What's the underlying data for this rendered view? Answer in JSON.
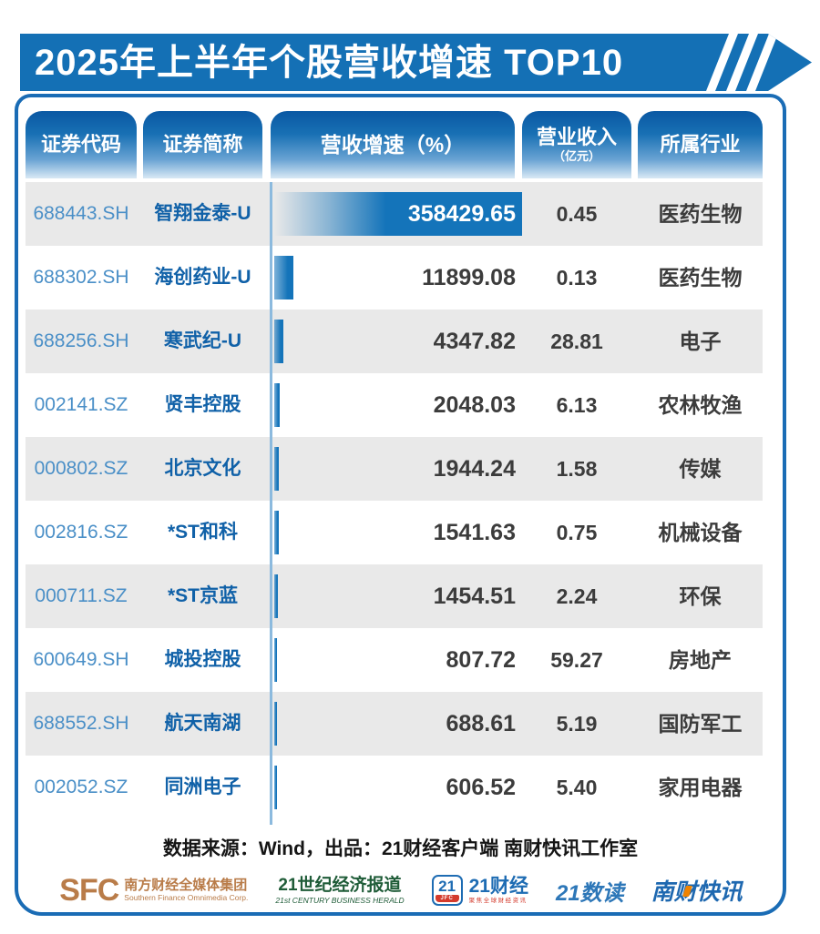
{
  "title": "2025年上半年个股营收增速 TOP10",
  "table": {
    "headers": [
      {
        "label": "证券代码"
      },
      {
        "label": "证券简称"
      },
      {
        "label": "营收增速（%）"
      },
      {
        "label": "营业收入",
        "sub": "（亿元）"
      },
      {
        "label": "所属行业"
      }
    ],
    "rows": [
      {
        "code": "688443.SH",
        "name": "智翔金泰-U",
        "growth": "358429.65",
        "revenue": "0.45",
        "industry": "医药生物"
      },
      {
        "code": "688302.SH",
        "name": "海创药业-U",
        "growth": "11899.08",
        "revenue": "0.13",
        "industry": "医药生物"
      },
      {
        "code": "688256.SH",
        "name": "寒武纪-U",
        "growth": "4347.82",
        "revenue": "28.81",
        "industry": "电子"
      },
      {
        "code": "002141.SZ",
        "name": "贤丰控股",
        "growth": "2048.03",
        "revenue": "6.13",
        "industry": "农林牧渔"
      },
      {
        "code": "000802.SZ",
        "name": "北京文化",
        "growth": "1944.24",
        "revenue": "1.58",
        "industry": "传媒"
      },
      {
        "code": "002816.SZ",
        "name": "*ST和科",
        "growth": "1541.63",
        "revenue": "0.75",
        "industry": "机械设备"
      },
      {
        "code": "000711.SZ",
        "name": "*ST京蓝",
        "growth": "1454.51",
        "revenue": "2.24",
        "industry": "环保"
      },
      {
        "code": "600649.SH",
        "name": "城投控股",
        "growth": "807.72",
        "revenue": "59.27",
        "industry": "房地产"
      },
      {
        "code": "688552.SH",
        "name": "航天南湖",
        "growth": "688.61",
        "revenue": "5.19",
        "industry": "国防军工"
      },
      {
        "code": "002052.SZ",
        "name": "同洲电子",
        "growth": "606.52",
        "revenue": "5.40",
        "industry": "家用电器"
      }
    ]
  },
  "chart_data": {
    "type": "bar",
    "orientation": "horizontal",
    "title": "2025年上半年个股营收增速 TOP10",
    "categories": [
      "智翔金泰-U",
      "海创药业-U",
      "寒武纪-U",
      "贤丰控股",
      "北京文化",
      "*ST和科",
      "*ST京蓝",
      "城投控股",
      "航天南湖",
      "同洲电子"
    ],
    "codes": [
      "688443.SH",
      "688302.SH",
      "688256.SH",
      "002141.SZ",
      "000802.SZ",
      "002816.SZ",
      "000711.SZ",
      "600649.SH",
      "688552.SH",
      "002052.SZ"
    ],
    "series": [
      {
        "name": "营收增速（%）",
        "values": [
          358429.65,
          11899.08,
          4347.82,
          2048.03,
          1944.24,
          1541.63,
          1454.51,
          807.72,
          688.61,
          606.52
        ]
      },
      {
        "name": "营业收入（亿元）",
        "values": [
          0.45,
          0.13,
          28.81,
          6.13,
          1.58,
          0.75,
          2.24,
          59.27,
          5.19,
          5.4
        ]
      }
    ],
    "industries": [
      "医药生物",
      "医药生物",
      "电子",
      "农林牧渔",
      "传媒",
      "机械设备",
      "环保",
      "房地产",
      "国防军工",
      "家用电器"
    ],
    "legend_position": "none",
    "grid": false
  },
  "footer": {
    "source": "数据来源：Wind，出品：21财经客户端 南财快讯工作室",
    "logos": {
      "sfc": {
        "abbr": "SFC",
        "name": "南方财经全媒体集团",
        "sub": "Southern Finance Omnimedia Corp."
      },
      "herald": {
        "name": "21世纪经济报道",
        "sub": "21st CENTURY BUSINESS HERALD"
      },
      "caijing": {
        "icon": "21",
        "icon_sub": "JFC",
        "name": "21财经",
        "sub": "聚焦全球财经资讯"
      },
      "shudu": {
        "name": "21数读"
      },
      "kuaixun": {
        "name": "南财快讯"
      }
    }
  },
  "colors": {
    "banner_blue": "#1470b5",
    "bar_blue": "#1474ba",
    "card_border": "#1a6cb5",
    "row_alt_gray": "#e9e9e9",
    "code_blue": "#4a8fc7",
    "name_blue": "#1061a8",
    "value_gray": "#3c3c3c",
    "axis_line": "#8cbade"
  }
}
